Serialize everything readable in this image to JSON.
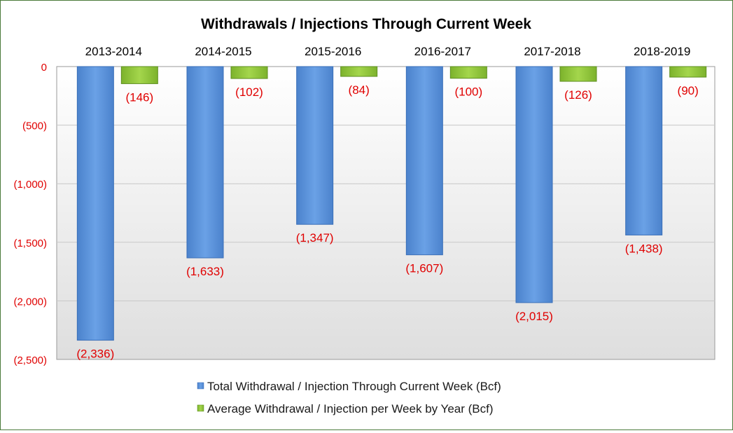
{
  "chart_data": {
    "type": "bar",
    "title": "Withdrawals / Injections Through Current Week",
    "categories": [
      "2013-2014",
      "2014-2015",
      "2015-2016",
      "2016-2017",
      "2017-2018",
      "2018-2019"
    ],
    "series": [
      {
        "name": "Total Withdrawal / Injection Through Current Week (Bcf)",
        "values": [
          -2336,
          -1633,
          -1347,
          -1607,
          -2015,
          -1438
        ],
        "labels": [
          "(2,336)",
          "(1,633)",
          "(1,347)",
          "(1,607)",
          "(2,015)",
          "(1,438)"
        ],
        "color": "#5b93d8"
      },
      {
        "name": "Average Withdrawal / Injection per Week by Year (Bcf)",
        "values": [
          -146,
          -102,
          -84,
          -100,
          -126,
          -90
        ],
        "labels": [
          "(146)",
          "(102)",
          "(84)",
          "(100)",
          "(126)",
          "(90)"
        ],
        "color": "#8fc43a"
      }
    ],
    "ylim": [
      -2500,
      0
    ],
    "yticks": [
      0,
      -500,
      -1000,
      -1500,
      -2000,
      -2500
    ],
    "ytick_labels": [
      "0",
      "(500)",
      "(1,000)",
      "(1,500)",
      "(2,000)",
      "(2,500)"
    ],
    "xlabel": "",
    "ylabel": "",
    "grid": true,
    "legend_position": "bottom",
    "label_color": "#e00000"
  }
}
